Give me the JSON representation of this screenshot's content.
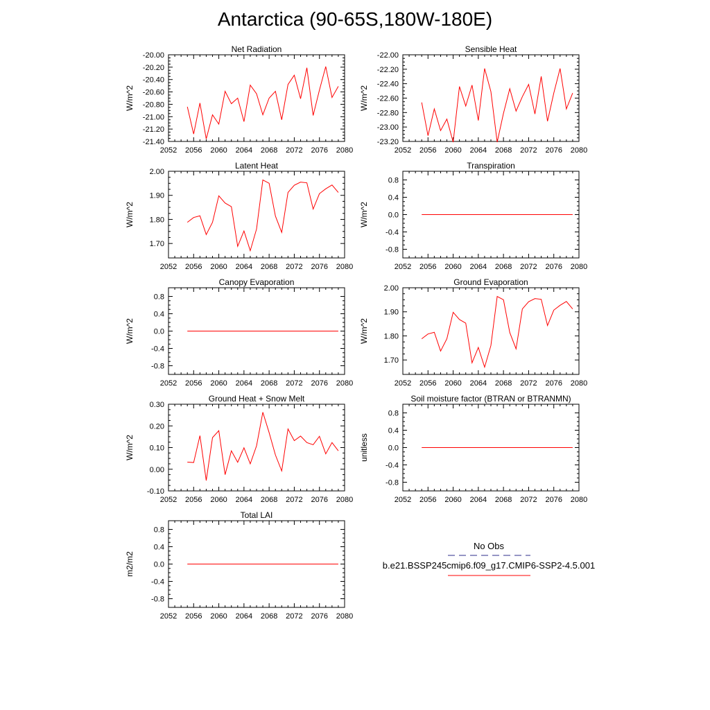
{
  "title": "Antarctica (90-65S,180W-180E)",
  "colors": {
    "model_line": "#ff0000",
    "obs_line": "#2b2b8a",
    "axis": "#000000"
  },
  "legend": {
    "entries": [
      {
        "label": "No Obs",
        "style": "dashed",
        "color": "#2b2b8a"
      },
      {
        "label": "b.e21.BSSP245cmip6.f09_g17.CMIP6-SSP2-4.5.001",
        "style": "solid",
        "color": "#ff0000"
      }
    ]
  },
  "chart_data": [
    {
      "type": "line",
      "title": "Net Radiation",
      "ylabel": "W/m^2",
      "xlim": [
        2052,
        2080
      ],
      "ylim": [
        -21.4,
        -20.0
      ],
      "xticks": [
        2052,
        2056,
        2060,
        2064,
        2068,
        2072,
        2076,
        2080
      ],
      "yticks": [
        -21.4,
        -21.2,
        -21.0,
        -20.8,
        -20.6,
        -20.4,
        -20.2,
        -20.0
      ],
      "ytick_labels": [
        "-21.40",
        "-21.20",
        "-21.00",
        "-20.80",
        "-20.60",
        "-20.40",
        "-20.20",
        "-20.00"
      ],
      "x": [
        2055,
        2056,
        2057,
        2058,
        2059,
        2060,
        2061,
        2062,
        2063,
        2064,
        2065,
        2066,
        2067,
        2068,
        2069,
        2070,
        2071,
        2072,
        2073,
        2074,
        2075,
        2076,
        2077,
        2078,
        2079
      ],
      "values": [
        -20.84,
        -21.28,
        -20.78,
        -21.36,
        -20.97,
        -21.12,
        -20.59,
        -20.79,
        -20.7,
        -21.08,
        -20.49,
        -20.63,
        -20.97,
        -20.7,
        -20.59,
        -21.05,
        -20.48,
        -20.33,
        -20.71,
        -20.21,
        -20.98,
        -20.57,
        -20.19,
        -20.69,
        -20.51
      ]
    },
    {
      "type": "line",
      "title": "Sensible Heat",
      "ylabel": "W/m^2",
      "xlim": [
        2052,
        2080
      ],
      "ylim": [
        -23.2,
        -22.0
      ],
      "xticks": [
        2052,
        2056,
        2060,
        2064,
        2068,
        2072,
        2076,
        2080
      ],
      "yticks": [
        -23.2,
        -23.0,
        -22.8,
        -22.6,
        -22.4,
        -22.2,
        -22.0
      ],
      "ytick_labels": [
        "-23.20",
        "-23.00",
        "-22.80",
        "-22.60",
        "-22.40",
        "-22.20",
        "-22.00"
      ],
      "x": [
        2055,
        2056,
        2057,
        2058,
        2059,
        2060,
        2061,
        2062,
        2063,
        2064,
        2065,
        2066,
        2067,
        2068,
        2069,
        2070,
        2071,
        2072,
        2073,
        2074,
        2075,
        2076,
        2077,
        2078,
        2079
      ],
      "values": [
        -22.66,
        -23.12,
        -22.75,
        -23.05,
        -22.89,
        -23.21,
        -22.44,
        -22.71,
        -22.42,
        -22.91,
        -22.19,
        -22.51,
        -23.21,
        -22.81,
        -22.47,
        -22.78,
        -22.58,
        -22.41,
        -22.82,
        -22.3,
        -22.92,
        -22.53,
        -22.19,
        -22.75,
        -22.53
      ]
    },
    {
      "type": "line",
      "title": "Latent Heat",
      "ylabel": "W/m^2",
      "xlim": [
        2052,
        2080
      ],
      "ylim": [
        1.64,
        2.0
      ],
      "xticks": [
        2052,
        2056,
        2060,
        2064,
        2068,
        2072,
        2076,
        2080
      ],
      "yticks": [
        1.7,
        1.8,
        1.9,
        2.0
      ],
      "ytick_labels": [
        "1.70",
        "1.80",
        "1.90",
        "2.00"
      ],
      "x": [
        2055,
        2056,
        2057,
        2058,
        2059,
        2060,
        2061,
        2062,
        2063,
        2064,
        2065,
        2066,
        2067,
        2068,
        2069,
        2070,
        2071,
        2072,
        2073,
        2074,
        2075,
        2076,
        2077,
        2078,
        2079
      ],
      "values": [
        1.788,
        1.808,
        1.815,
        1.737,
        1.788,
        1.898,
        1.868,
        1.853,
        1.688,
        1.752,
        1.67,
        1.76,
        1.964,
        1.95,
        1.814,
        1.746,
        1.912,
        1.942,
        1.955,
        1.952,
        1.843,
        1.907,
        1.927,
        1.943,
        1.912
      ]
    },
    {
      "type": "line",
      "title": "Transpiration",
      "ylabel": "W/m^2",
      "xlim": [
        2052,
        2080
      ],
      "ylim": [
        -1.0,
        1.0
      ],
      "xticks": [
        2052,
        2056,
        2060,
        2064,
        2068,
        2072,
        2076,
        2080
      ],
      "yticks": [
        -0.8,
        -0.4,
        0.0,
        0.4,
        0.8
      ],
      "ytick_labels": [
        "-0.8",
        "-0.4",
        "0.0",
        "0.4",
        "0.8"
      ],
      "x": [
        2055,
        2079
      ],
      "values": [
        0.0,
        0.0
      ]
    },
    {
      "type": "line",
      "title": "Canopy Evaporation",
      "ylabel": "W/m^2",
      "xlim": [
        2052,
        2080
      ],
      "ylim": [
        -1.0,
        1.0
      ],
      "xticks": [
        2052,
        2056,
        2060,
        2064,
        2068,
        2072,
        2076,
        2080
      ],
      "yticks": [
        -0.8,
        -0.4,
        0.0,
        0.4,
        0.8
      ],
      "ytick_labels": [
        "-0.8",
        "-0.4",
        "0.0",
        "0.4",
        "0.8"
      ],
      "x": [
        2055,
        2079
      ],
      "values": [
        0.0,
        0.0
      ]
    },
    {
      "type": "line",
      "title": "Ground Evaporation",
      "ylabel": "W/m^2",
      "xlim": [
        2052,
        2080
      ],
      "ylim": [
        1.64,
        2.0
      ],
      "xticks": [
        2052,
        2056,
        2060,
        2064,
        2068,
        2072,
        2076,
        2080
      ],
      "yticks": [
        1.7,
        1.8,
        1.9,
        2.0
      ],
      "ytick_labels": [
        "1.70",
        "1.80",
        "1.90",
        "2.00"
      ],
      "x": [
        2055,
        2056,
        2057,
        2058,
        2059,
        2060,
        2061,
        2062,
        2063,
        2064,
        2065,
        2066,
        2067,
        2068,
        2069,
        2070,
        2071,
        2072,
        2073,
        2074,
        2075,
        2076,
        2077,
        2078,
        2079
      ],
      "values": [
        1.788,
        1.808,
        1.815,
        1.737,
        1.788,
        1.898,
        1.868,
        1.853,
        1.688,
        1.752,
        1.67,
        1.76,
        1.964,
        1.95,
        1.814,
        1.746,
        1.912,
        1.942,
        1.955,
        1.952,
        1.843,
        1.907,
        1.927,
        1.943,
        1.912
      ]
    },
    {
      "type": "line",
      "title": "Ground Heat + Snow Melt",
      "ylabel": "W/m^2",
      "xlim": [
        2052,
        2080
      ],
      "ylim": [
        -0.1,
        0.3
      ],
      "xticks": [
        2052,
        2056,
        2060,
        2064,
        2068,
        2072,
        2076,
        2080
      ],
      "yticks": [
        -0.1,
        0.0,
        0.1,
        0.2,
        0.3
      ],
      "ytick_labels": [
        "-0.10",
        "0.00",
        "0.10",
        "0.20",
        "0.30"
      ],
      "x": [
        2055,
        2056,
        2057,
        2058,
        2059,
        2060,
        2061,
        2062,
        2063,
        2064,
        2065,
        2066,
        2067,
        2068,
        2069,
        2070,
        2071,
        2072,
        2073,
        2074,
        2075,
        2076,
        2077,
        2078,
        2079
      ],
      "values": [
        0.033,
        0.031,
        0.155,
        -0.052,
        0.146,
        0.178,
        -0.025,
        0.085,
        0.032,
        0.099,
        0.025,
        0.108,
        0.263,
        0.169,
        0.066,
        -0.008,
        0.186,
        0.132,
        0.153,
        0.123,
        0.113,
        0.152,
        0.071,
        0.123,
        0.085
      ]
    },
    {
      "type": "line",
      "title": "Soil moisture factor (BTRAN or BTRANMN)",
      "ylabel": "unitless",
      "xlim": [
        2052,
        2080
      ],
      "ylim": [
        -1.0,
        1.0
      ],
      "xticks": [
        2052,
        2056,
        2060,
        2064,
        2068,
        2072,
        2076,
        2080
      ],
      "yticks": [
        -0.8,
        -0.4,
        0.0,
        0.4,
        0.8
      ],
      "ytick_labels": [
        "-0.8",
        "-0.4",
        "0.0",
        "0.4",
        "0.8"
      ],
      "x": [
        2055,
        2079
      ],
      "values": [
        0.0,
        0.0
      ]
    },
    {
      "type": "line",
      "title": "Total LAI",
      "ylabel": "m2/m2",
      "xlim": [
        2052,
        2080
      ],
      "ylim": [
        -1.0,
        1.0
      ],
      "xticks": [
        2052,
        2056,
        2060,
        2064,
        2068,
        2072,
        2076,
        2080
      ],
      "yticks": [
        -0.8,
        -0.4,
        0.0,
        0.4,
        0.8
      ],
      "ytick_labels": [
        "-0.8",
        "-0.4",
        "0.0",
        "0.4",
        "0.8"
      ],
      "x": [
        2055,
        2079
      ],
      "values": [
        0.0,
        0.0
      ]
    }
  ]
}
